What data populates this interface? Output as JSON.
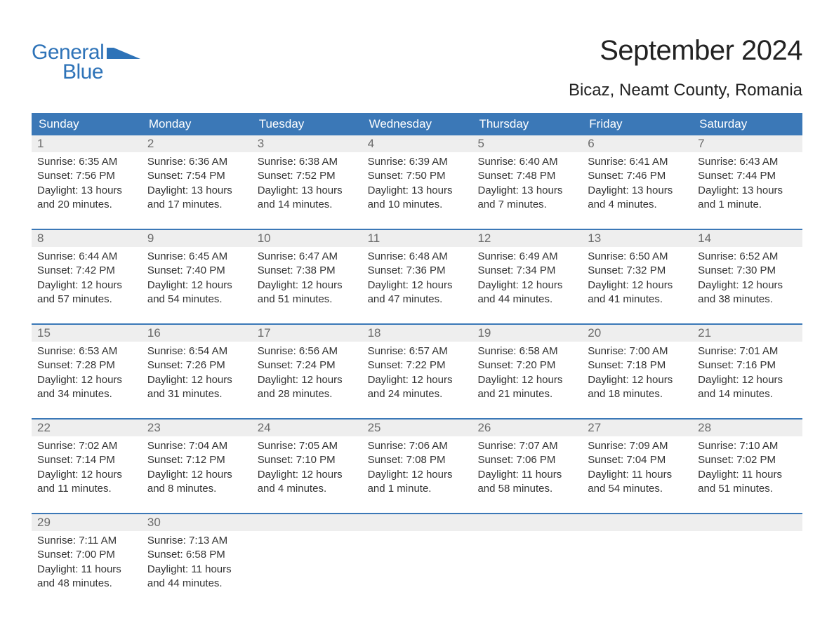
{
  "brand": {
    "line1": "General",
    "line2": "Blue",
    "color": "#2e73b8"
  },
  "title": "September 2024",
  "location": "Bicaz, Neamt County, Romania",
  "header_bg": "#3b78b7",
  "datebar_bg": "#eeeeee",
  "week_border_color": "#3b78b7",
  "text_color": "#333333",
  "dayname_fontsize": 17,
  "body_fontsize": 15,
  "daynames": [
    "Sunday",
    "Monday",
    "Tuesday",
    "Wednesday",
    "Thursday",
    "Friday",
    "Saturday"
  ],
  "weeks": [
    [
      {
        "date": "1",
        "sunrise": "Sunrise: 6:35 AM",
        "sunset": "Sunset: 7:56 PM",
        "dl1": "Daylight: 13 hours",
        "dl2": "and 20 minutes."
      },
      {
        "date": "2",
        "sunrise": "Sunrise: 6:36 AM",
        "sunset": "Sunset: 7:54 PM",
        "dl1": "Daylight: 13 hours",
        "dl2": "and 17 minutes."
      },
      {
        "date": "3",
        "sunrise": "Sunrise: 6:38 AM",
        "sunset": "Sunset: 7:52 PM",
        "dl1": "Daylight: 13 hours",
        "dl2": "and 14 minutes."
      },
      {
        "date": "4",
        "sunrise": "Sunrise: 6:39 AM",
        "sunset": "Sunset: 7:50 PM",
        "dl1": "Daylight: 13 hours",
        "dl2": "and 10 minutes."
      },
      {
        "date": "5",
        "sunrise": "Sunrise: 6:40 AM",
        "sunset": "Sunset: 7:48 PM",
        "dl1": "Daylight: 13 hours",
        "dl2": "and 7 minutes."
      },
      {
        "date": "6",
        "sunrise": "Sunrise: 6:41 AM",
        "sunset": "Sunset: 7:46 PM",
        "dl1": "Daylight: 13 hours",
        "dl2": "and 4 minutes."
      },
      {
        "date": "7",
        "sunrise": "Sunrise: 6:43 AM",
        "sunset": "Sunset: 7:44 PM",
        "dl1": "Daylight: 13 hours",
        "dl2": "and 1 minute."
      }
    ],
    [
      {
        "date": "8",
        "sunrise": "Sunrise: 6:44 AM",
        "sunset": "Sunset: 7:42 PM",
        "dl1": "Daylight: 12 hours",
        "dl2": "and 57 minutes."
      },
      {
        "date": "9",
        "sunrise": "Sunrise: 6:45 AM",
        "sunset": "Sunset: 7:40 PM",
        "dl1": "Daylight: 12 hours",
        "dl2": "and 54 minutes."
      },
      {
        "date": "10",
        "sunrise": "Sunrise: 6:47 AM",
        "sunset": "Sunset: 7:38 PM",
        "dl1": "Daylight: 12 hours",
        "dl2": "and 51 minutes."
      },
      {
        "date": "11",
        "sunrise": "Sunrise: 6:48 AM",
        "sunset": "Sunset: 7:36 PM",
        "dl1": "Daylight: 12 hours",
        "dl2": "and 47 minutes."
      },
      {
        "date": "12",
        "sunrise": "Sunrise: 6:49 AM",
        "sunset": "Sunset: 7:34 PM",
        "dl1": "Daylight: 12 hours",
        "dl2": "and 44 minutes."
      },
      {
        "date": "13",
        "sunrise": "Sunrise: 6:50 AM",
        "sunset": "Sunset: 7:32 PM",
        "dl1": "Daylight: 12 hours",
        "dl2": "and 41 minutes."
      },
      {
        "date": "14",
        "sunrise": "Sunrise: 6:52 AM",
        "sunset": "Sunset: 7:30 PM",
        "dl1": "Daylight: 12 hours",
        "dl2": "and 38 minutes."
      }
    ],
    [
      {
        "date": "15",
        "sunrise": "Sunrise: 6:53 AM",
        "sunset": "Sunset: 7:28 PM",
        "dl1": "Daylight: 12 hours",
        "dl2": "and 34 minutes."
      },
      {
        "date": "16",
        "sunrise": "Sunrise: 6:54 AM",
        "sunset": "Sunset: 7:26 PM",
        "dl1": "Daylight: 12 hours",
        "dl2": "and 31 minutes."
      },
      {
        "date": "17",
        "sunrise": "Sunrise: 6:56 AM",
        "sunset": "Sunset: 7:24 PM",
        "dl1": "Daylight: 12 hours",
        "dl2": "and 28 minutes."
      },
      {
        "date": "18",
        "sunrise": "Sunrise: 6:57 AM",
        "sunset": "Sunset: 7:22 PM",
        "dl1": "Daylight: 12 hours",
        "dl2": "and 24 minutes."
      },
      {
        "date": "19",
        "sunrise": "Sunrise: 6:58 AM",
        "sunset": "Sunset: 7:20 PM",
        "dl1": "Daylight: 12 hours",
        "dl2": "and 21 minutes."
      },
      {
        "date": "20",
        "sunrise": "Sunrise: 7:00 AM",
        "sunset": "Sunset: 7:18 PM",
        "dl1": "Daylight: 12 hours",
        "dl2": "and 18 minutes."
      },
      {
        "date": "21",
        "sunrise": "Sunrise: 7:01 AM",
        "sunset": "Sunset: 7:16 PM",
        "dl1": "Daylight: 12 hours",
        "dl2": "and 14 minutes."
      }
    ],
    [
      {
        "date": "22",
        "sunrise": "Sunrise: 7:02 AM",
        "sunset": "Sunset: 7:14 PM",
        "dl1": "Daylight: 12 hours",
        "dl2": "and 11 minutes."
      },
      {
        "date": "23",
        "sunrise": "Sunrise: 7:04 AM",
        "sunset": "Sunset: 7:12 PM",
        "dl1": "Daylight: 12 hours",
        "dl2": "and 8 minutes."
      },
      {
        "date": "24",
        "sunrise": "Sunrise: 7:05 AM",
        "sunset": "Sunset: 7:10 PM",
        "dl1": "Daylight: 12 hours",
        "dl2": "and 4 minutes."
      },
      {
        "date": "25",
        "sunrise": "Sunrise: 7:06 AM",
        "sunset": "Sunset: 7:08 PM",
        "dl1": "Daylight: 12 hours",
        "dl2": "and 1 minute."
      },
      {
        "date": "26",
        "sunrise": "Sunrise: 7:07 AM",
        "sunset": "Sunset: 7:06 PM",
        "dl1": "Daylight: 11 hours",
        "dl2": "and 58 minutes."
      },
      {
        "date": "27",
        "sunrise": "Sunrise: 7:09 AM",
        "sunset": "Sunset: 7:04 PM",
        "dl1": "Daylight: 11 hours",
        "dl2": "and 54 minutes."
      },
      {
        "date": "28",
        "sunrise": "Sunrise: 7:10 AM",
        "sunset": "Sunset: 7:02 PM",
        "dl1": "Daylight: 11 hours",
        "dl2": "and 51 minutes."
      }
    ],
    [
      {
        "date": "29",
        "sunrise": "Sunrise: 7:11 AM",
        "sunset": "Sunset: 7:00 PM",
        "dl1": "Daylight: 11 hours",
        "dl2": "and 48 minutes."
      },
      {
        "date": "30",
        "sunrise": "Sunrise: 7:13 AM",
        "sunset": "Sunset: 6:58 PM",
        "dl1": "Daylight: 11 hours",
        "dl2": "and 44 minutes."
      },
      {
        "empty": true
      },
      {
        "empty": true
      },
      {
        "empty": true
      },
      {
        "empty": true
      },
      {
        "empty": true
      }
    ]
  ]
}
